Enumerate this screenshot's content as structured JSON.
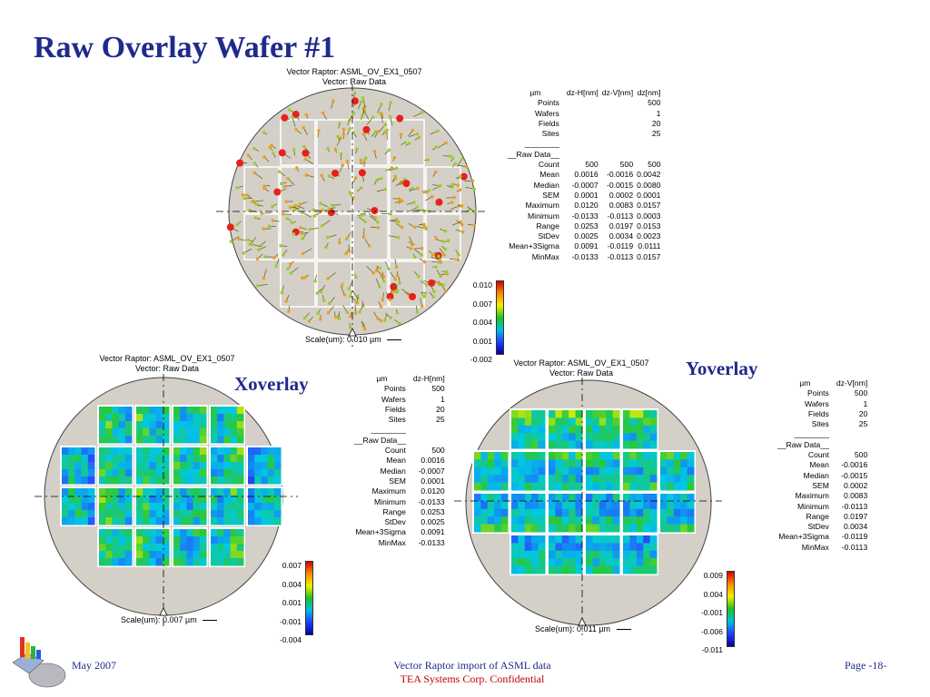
{
  "slide": {
    "title": "Raw Overlay Wafer #1"
  },
  "main_plot": {
    "caption_line1": "Vector Raptor: ASML_OV_EX1_0507",
    "caption_line2": "Vector: Raw Data",
    "scale_text": "Scale(um): 0.010 µm",
    "colorbar_ticks": [
      "0.010",
      "0.007",
      "0.004",
      "0.001",
      "-0.002"
    ]
  },
  "main_stats": {
    "headers": [
      "µm",
      "dz-H[nm]",
      "dz-V[nm]",
      "dz[nm]"
    ],
    "rows_top": [
      {
        "label": "Points",
        "values": [
          "",
          "",
          "500"
        ]
      },
      {
        "label": "Wafers",
        "values": [
          "",
          "",
          "1"
        ]
      },
      {
        "label": "Fields",
        "values": [
          "",
          "",
          "20"
        ]
      },
      {
        "label": "Sites",
        "values": [
          "",
          "",
          "25"
        ]
      }
    ],
    "section_rule": "________",
    "section_label": "__Raw Data__",
    "rows": [
      {
        "label": "Count",
        "values": [
          "500",
          "500",
          "500"
        ]
      },
      {
        "label": "Mean",
        "values": [
          "0.0016",
          "-0.0016",
          "0.0042"
        ]
      },
      {
        "label": "Median",
        "values": [
          "-0.0007",
          "-0.0015",
          "0.0080"
        ]
      },
      {
        "label": "SEM",
        "values": [
          "0.0001",
          "0.0002",
          "0.0001"
        ]
      },
      {
        "label": "Maximum",
        "values": [
          "0.0120",
          "0.0083",
          "0.0157"
        ]
      },
      {
        "label": "Minimum",
        "values": [
          "-0.0133",
          "-0.0113",
          "0.0003"
        ]
      },
      {
        "label": "Range",
        "values": [
          "0.0253",
          "0.0197",
          "0.0153"
        ]
      },
      {
        "label": "StDev",
        "values": [
          "0.0025",
          "0.0034",
          "0.0023"
        ]
      },
      {
        "label": "Mean+3Sigma",
        "values": [
          "0.0091",
          "-0.0119",
          "0.0111"
        ]
      },
      {
        "label": "MinMax",
        "values": [
          "-0.0133",
          "-0.0113",
          "0.0157"
        ]
      }
    ]
  },
  "x_plot": {
    "caption_line1": "Vector Raptor: ASML_OV_EX1_0507",
    "caption_line2": "Vector: Raw Data",
    "side_label": "Xoverlay",
    "scale_text": "Scale(um): 0.007 µm",
    "colorbar_ticks": [
      "0.007",
      "0.004",
      "0.001",
      "-0.001",
      "-0.004"
    ]
  },
  "x_stats": {
    "headers": [
      "µm",
      "dz-H[nm]"
    ],
    "rows_top": [
      {
        "label": "Points",
        "values": [
          "500"
        ]
      },
      {
        "label": "Wafers",
        "values": [
          "1"
        ]
      },
      {
        "label": "Fields",
        "values": [
          "20"
        ]
      },
      {
        "label": "Sites",
        "values": [
          "25"
        ]
      }
    ],
    "section_rule": "________",
    "section_label": "__Raw Data__",
    "rows": [
      {
        "label": "Count",
        "values": [
          "500"
        ]
      },
      {
        "label": "Mean",
        "values": [
          "0.0016"
        ]
      },
      {
        "label": "Median",
        "values": [
          "-0.0007"
        ]
      },
      {
        "label": "SEM",
        "values": [
          "0.0001"
        ]
      },
      {
        "label": "Maximum",
        "values": [
          "0.0120"
        ]
      },
      {
        "label": "Minimum",
        "values": [
          "-0.0133"
        ]
      },
      {
        "label": "Range",
        "values": [
          "0.0253"
        ]
      },
      {
        "label": "StDev",
        "values": [
          "0.0025"
        ]
      },
      {
        "label": "Mean+3Sigma",
        "values": [
          "0.0091"
        ]
      },
      {
        "label": "MinMax",
        "values": [
          "-0.0133"
        ]
      }
    ]
  },
  "y_plot": {
    "caption_line1": "Vector Raptor: ASML_OV_EX1_0507",
    "caption_line2": "Vector: Raw Data",
    "side_label": "Yoverlay",
    "scale_text": "Scale(um): 0.011 µm",
    "colorbar_ticks": [
      "0.009",
      "0.004",
      "-0.001",
      "-0.006",
      "-0.011"
    ]
  },
  "y_stats": {
    "headers": [
      "µm",
      "dz-V[nm]"
    ],
    "rows_top": [
      {
        "label": "Points",
        "values": [
          "500"
        ]
      },
      {
        "label": "Wafers",
        "values": [
          "1"
        ]
      },
      {
        "label": "Fields",
        "values": [
          "20"
        ]
      },
      {
        "label": "Sites",
        "values": [
          "25"
        ]
      }
    ],
    "section_rule": "________",
    "section_label": "__Raw Data__",
    "rows": [
      {
        "label": "Count",
        "values": [
          "500"
        ]
      },
      {
        "label": "Mean",
        "values": [
          "-0.0016"
        ]
      },
      {
        "label": "Median",
        "values": [
          "-0.0015"
        ]
      },
      {
        "label": "SEM",
        "values": [
          "0.0002"
        ]
      },
      {
        "label": "Maximum",
        "values": [
          "0.0083"
        ]
      },
      {
        "label": "Minimum",
        "values": [
          "-0.0113"
        ]
      },
      {
        "label": "Range",
        "values": [
          "0.0197"
        ]
      },
      {
        "label": "StDev",
        "values": [
          "0.0034"
        ]
      },
      {
        "label": "Mean+3Sigma",
        "values": [
          "-0.0119"
        ]
      },
      {
        "label": "MinMax",
        "values": [
          "-0.0113"
        ]
      }
    ]
  },
  "footer": {
    "date": "May 2007",
    "center_line1": "Vector Raptor import of ASML data",
    "center_line2": "TEA Systems Corp. Confidential",
    "page": "Page -18-"
  },
  "colors": {
    "title": "#1f2a8c",
    "wafer_fill": "#d4d0c8",
    "confidential": "#c00000",
    "vector_head": "#e8201a",
    "vector_body": "#d9c830"
  },
  "icons": {
    "logo": "tea-systems-logo-icon"
  }
}
